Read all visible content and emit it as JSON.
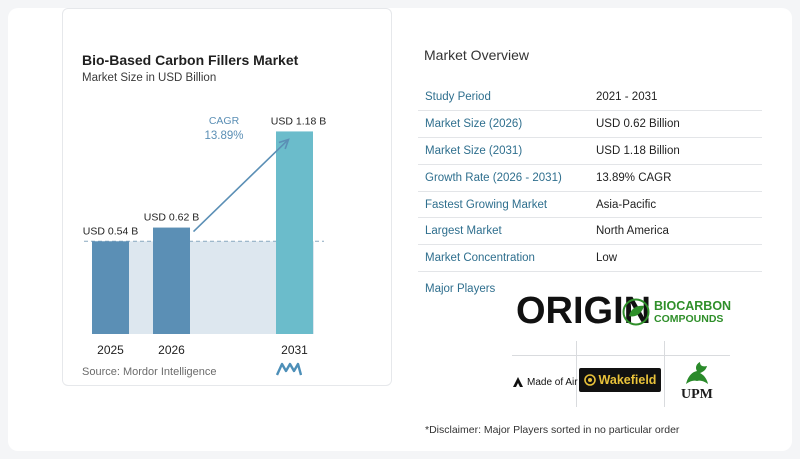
{
  "chart_data": {
    "type": "bar",
    "title": "Bio-Based Carbon Fillers Market",
    "subtitle": "Market Size in USD Billion",
    "categories": [
      "2025",
      "2026",
      "2031"
    ],
    "values": [
      0.54,
      0.62,
      1.18
    ],
    "data_labels": [
      "USD 0.54 B",
      "USD 0.62 B",
      "USD 1.18 B"
    ],
    "cagr_label": "CAGR",
    "cagr_value": "13.89%",
    "ylim": [
      0,
      1.2
    ],
    "grid": false,
    "bar_color": "#5b8fb5",
    "bar_color_last": "#6bbccb",
    "baseline_band_color": "#dde7ef"
  },
  "source": "Source: Mordor Intelligence",
  "overview": {
    "title": "Market Overview",
    "rows": [
      {
        "key": "Study Period",
        "value": "2021 - 2031"
      },
      {
        "key": "Market Size (2026)",
        "value": "USD 0.62 Billion"
      },
      {
        "key": "Market Size (2031)",
        "value": "USD 1.18 Billion"
      },
      {
        "key": "Growth Rate (2026 - 2031)",
        "value": "13.89% CAGR"
      },
      {
        "key": "Fastest Growing Market",
        "value": "Asia-Pacific"
      },
      {
        "key": "Largest Market",
        "value": "North America"
      },
      {
        "key": "Market Concentration",
        "value": "Low"
      }
    ],
    "players_label": "Major Players",
    "players": {
      "origin": "ORIGIN",
      "biocarbon_1": "BIOCARBON",
      "biocarbon_2": "COMPOUNDS",
      "madeofair": "Made of Air",
      "wakefield": "Wakefield",
      "upm": "UPM"
    },
    "disclaimer": "*Disclaimer: Major Players sorted in no particular order"
  }
}
